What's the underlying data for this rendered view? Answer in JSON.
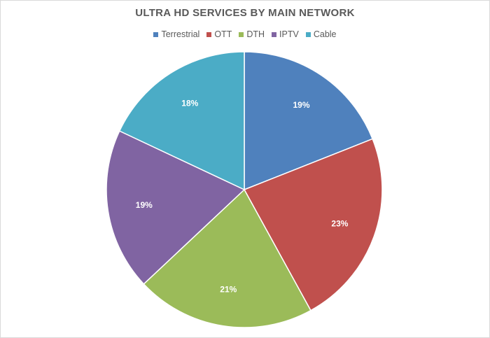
{
  "chart_data": {
    "type": "pie",
    "title": "ULTRA HD SERVICES BY MAIN NETWORK",
    "legend_position": "top",
    "categories": [
      "Terrestrial",
      "OTT",
      "DTH",
      "IPTV",
      "Cable"
    ],
    "values": [
      19,
      23,
      21,
      19,
      18
    ],
    "labels": [
      "19%",
      "23%",
      "21%",
      "19%",
      "18%"
    ],
    "colors": [
      "#4f81bd",
      "#c0504d",
      "#9bbb59",
      "#8064a2",
      "#4bacc6"
    ],
    "start_angle_deg": 0,
    "direction": "clockwise"
  }
}
